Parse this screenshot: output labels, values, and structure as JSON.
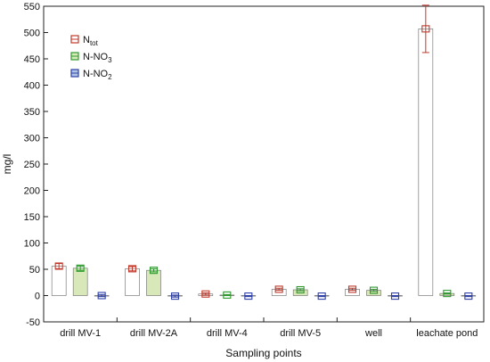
{
  "chart_data": {
    "type": "bar",
    "xlabel": "Sampling points",
    "ylabel": "mg/l",
    "ylim": [
      -50,
      550
    ],
    "yticks": [
      -50,
      0,
      50,
      100,
      150,
      200,
      250,
      300,
      350,
      400,
      450,
      500,
      550
    ],
    "grid": false,
    "legend_position": "top-left",
    "error_bars": true,
    "categories": [
      "drill MV-1",
      "drill MV-2A",
      "drill MV-4",
      "drill MV-5",
      "well",
      "leachate pond"
    ],
    "series": [
      {
        "name": "N",
        "name_sub": "tot",
        "fill": "#ffffff",
        "color": "#c0392b",
        "values": [
          56,
          51,
          3,
          12,
          12,
          507
        ],
        "errors": [
          5,
          4,
          2,
          2,
          2,
          45
        ]
      },
      {
        "name": "N-NO",
        "name_sub": "3",
        "fill": "#d9e8b8",
        "color": "#2e9a2e",
        "values": [
          52,
          48,
          1,
          11,
          10,
          4
        ],
        "errors": [
          4,
          3,
          1,
          2,
          2,
          1
        ]
      },
      {
        "name": "N-NO",
        "name_sub": "2",
        "fill": "#aec4e4",
        "color": "#2d3fa8",
        "values": [
          0,
          -1,
          -1,
          -1,
          -1,
          -1
        ],
        "errors": [
          2,
          2,
          1,
          1,
          1,
          1
        ]
      }
    ]
  }
}
